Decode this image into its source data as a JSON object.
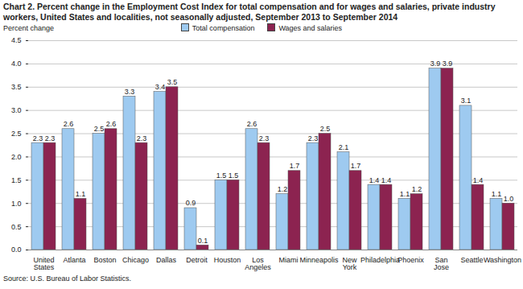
{
  "chart_data": {
    "type": "bar",
    "title": "Chart 2. Percent change in the Employment Cost Index for total compensation and for wages and salaries, private industry workers, United States and localities, not seasonally adjusted, September 2013 to September 2014",
    "ylabel": "Percent change",
    "source": "Source: U.S. Bureau of Labor Statistics.",
    "categories": [
      "United States",
      "Atlanta",
      "Boston",
      "Chicago",
      "Dallas",
      "Detroit",
      "Houston",
      "Los Angeles",
      "Miami",
      "Minneapolis",
      "New York",
      "Philadelphia",
      "Phoenix",
      "San Jose",
      "Seattle",
      "Washington"
    ],
    "series": [
      {
        "name": "Total compensation",
        "color": "#9ecaf0",
        "values": [
          2.3,
          2.6,
          2.5,
          3.3,
          3.4,
          0.9,
          1.5,
          2.6,
          1.2,
          2.3,
          2.1,
          1.4,
          1.1,
          3.9,
          3.1,
          1.1
        ],
        "value_labels": [
          "2.3",
          "2.6",
          "2.5",
          "3.3",
          "3.4",
          "0.9",
          "1.5",
          "2.6",
          "1.2",
          "2.3",
          "2.1",
          "1.4",
          "1.1",
          "3.9",
          "3.1",
          "1.1"
        ]
      },
      {
        "name": "Wages and salaries",
        "color": "#8c2350",
        "values": [
          2.3,
          1.1,
          2.6,
          2.3,
          3.5,
          0.1,
          1.5,
          2.3,
          1.7,
          2.5,
          1.7,
          1.4,
          1.2,
          3.9,
          1.4,
          1.0
        ],
        "value_labels": [
          "2.3",
          "1.1",
          "2.6",
          "2.3",
          "3.5",
          "0.1",
          "1.5",
          "2.3",
          "1.7",
          "2.5",
          "1.7",
          "1.4",
          "1.2",
          "3.9",
          "1.4",
          "1.0"
        ]
      }
    ],
    "ylim": [
      0,
      4.5
    ],
    "yticks": [
      {
        "value": 0,
        "label": "0.0"
      },
      {
        "value": 0.5,
        "label": "0.5"
      },
      {
        "value": 1,
        "label": "1.0"
      },
      {
        "value": 1.5,
        "label": "1.5"
      },
      {
        "value": 2,
        "label": "2.0"
      },
      {
        "value": 2.5,
        "label": "2.5"
      },
      {
        "value": 3,
        "label": "3.0"
      },
      {
        "value": 3.5,
        "label": "3.5"
      },
      {
        "value": 4,
        "label": "4.0"
      },
      {
        "value": 4.5,
        "label": "4.5"
      }
    ],
    "grid": true,
    "legend": "top",
    "data_labels": true
  }
}
